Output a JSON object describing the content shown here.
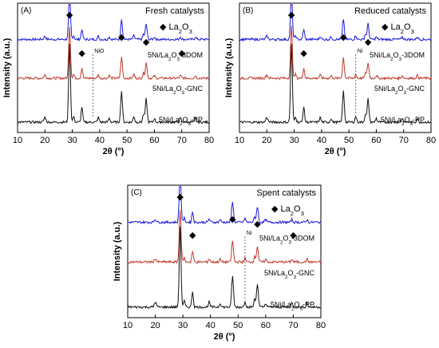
{
  "chart_data": [
    {
      "type": "line",
      "panel": "(A)",
      "title": "Fresh catalysts",
      "legend": {
        "symbol": "◆",
        "text": "La",
        "sub": "2",
        "text2": "O",
        "sub2": "3"
      },
      "xlabel_pre": "2",
      "xlabel_theta": "θ",
      "xlabel_post": " (°)",
      "ylabel": "Intensity (a.u.)",
      "xlim": [
        10,
        80
      ],
      "xticks": [
        10,
        20,
        30,
        40,
        50,
        60,
        70,
        80
      ],
      "metal_label": "NiO",
      "metal_x": 37.5,
      "la2o3_peaks": [
        29,
        33.5,
        48,
        57,
        70
      ],
      "series": [
        {
          "label_pre": "5Ni/La",
          "sub1": "2",
          "label_mid": "O",
          "sub2": "3",
          "label_post": "-3DOM",
          "color": "#1a1adb",
          "baseline": 0.72,
          "offset_label": 0.56
        },
        {
          "label_pre": "5Ni/La",
          "sub1": "2",
          "label_mid": "O",
          "sub2": "3",
          "label_post": "-GNC",
          "color": "#c0392b",
          "baseline": 0.42,
          "offset_label": 0.3
        },
        {
          "label_pre": "5Ni/La",
          "sub1": "2",
          "label_mid": "O",
          "sub2": "3",
          "label_post": "-PP",
          "color": "#111111",
          "baseline": 0.08,
          "offset_label": 0.06
        }
      ]
    },
    {
      "type": "line",
      "panel": "(B)",
      "title": "Reduced catalysts",
      "legend": {
        "symbol": "◆",
        "text": "La",
        "sub": "2",
        "text2": "O",
        "sub2": "3"
      },
      "xlabel_pre": "2",
      "xlabel_theta": "θ",
      "xlabel_post": " (°)",
      "ylabel": "Intensity (a.u.)",
      "xlim": [
        10,
        80
      ],
      "xticks": [
        10,
        20,
        30,
        40,
        50,
        60,
        70,
        80
      ],
      "metal_label": "Ni",
      "metal_x": 52.5,
      "la2o3_peaks": [
        29,
        33.5,
        48,
        57
      ],
      "series": [
        {
          "label_pre": "5Ni/La",
          "sub1": "2",
          "label_mid": "O",
          "sub2": "3",
          "label_post": "-3DOM",
          "color": "#1a1adb",
          "baseline": 0.72,
          "offset_label": 0.56
        },
        {
          "label_pre": "5Ni/La",
          "sub1": "2",
          "label_mid": "O",
          "sub2": "3",
          "label_post": "-GNC",
          "color": "#c0392b",
          "baseline": 0.42,
          "offset_label": 0.3
        },
        {
          "label_pre": "5Ni/La",
          "sub1": "2",
          "label_mid": "O",
          "sub2": "3",
          "label_post": "-PP",
          "color": "#111111",
          "baseline": 0.08,
          "offset_label": 0.06
        }
      ]
    },
    {
      "type": "line",
      "panel": "(C)",
      "title": "Spent catalysts",
      "legend": {
        "symbol": "◆",
        "text": "La",
        "sub": "2",
        "text2": "O",
        "sub2": "3"
      },
      "xlabel_pre": "2",
      "xlabel_theta": "θ",
      "xlabel_post": " (°)",
      "ylabel": "Intensity (a.u.)",
      "xlim": [
        10,
        80
      ],
      "xticks": [
        10,
        20,
        30,
        40,
        50,
        60,
        70,
        80
      ],
      "metal_label": "Ni",
      "metal_x": 52.5,
      "la2o3_peaks": [
        29,
        33.5,
        48,
        57,
        70
      ],
      "series": [
        {
          "label_pre": "5Ni/La",
          "sub1": "2",
          "label_mid": "O",
          "sub2": "3",
          "label_post": "-3DOM",
          "color": "#1a1adb",
          "baseline": 0.72,
          "offset_label": 0.56
        },
        {
          "label_pre": "5Ni/La",
          "sub1": "2",
          "label_mid": "O",
          "sub2": "3",
          "label_post": "-GNC",
          "color": "#c0392b",
          "baseline": 0.42,
          "offset_label": 0.3
        },
        {
          "label_pre": "5Ni/La",
          "sub1": "2",
          "label_mid": "O",
          "sub2": "3",
          "label_post": "-PP",
          "color": "#111111",
          "baseline": 0.08,
          "offset_label": 0.06
        }
      ]
    }
  ]
}
